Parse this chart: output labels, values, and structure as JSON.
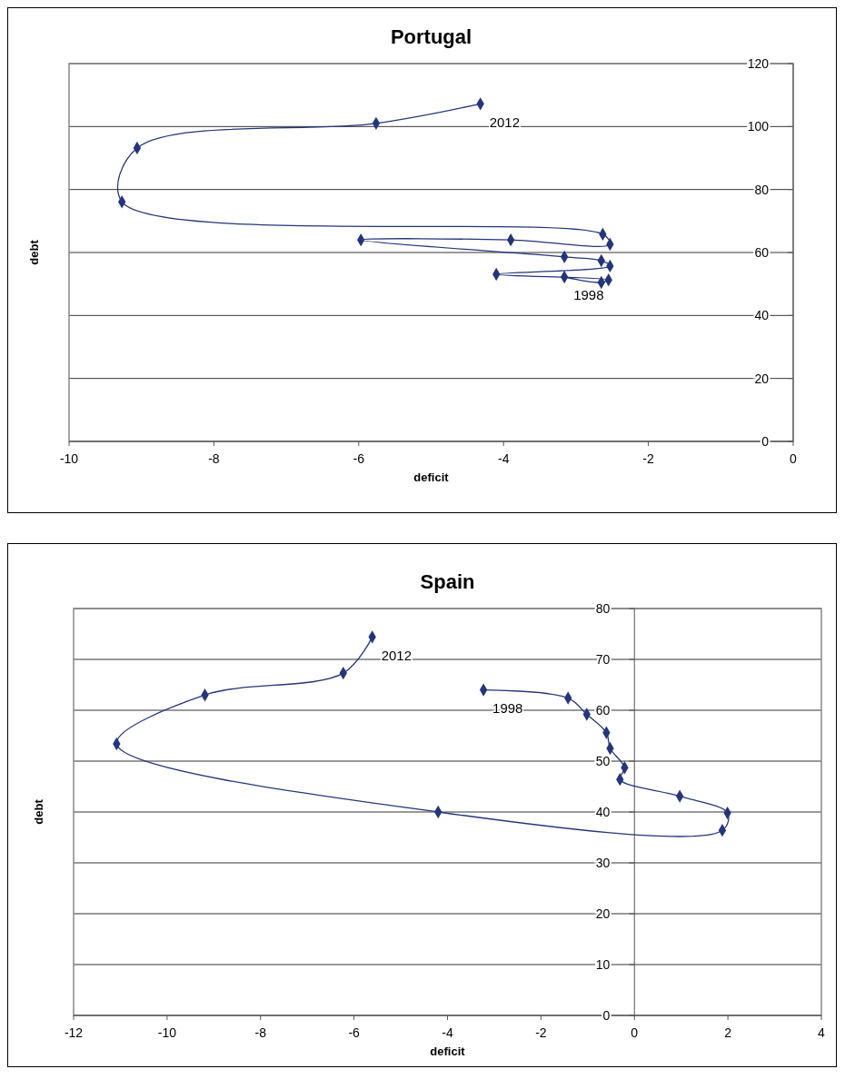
{
  "chart_data": [
    {
      "type": "line",
      "title": "Portugal",
      "xlabel": "deficit",
      "ylabel": "debt",
      "xlim": [
        -10,
        0
      ],
      "ylim": [
        0,
        120
      ],
      "xticks": [
        -10,
        -8,
        -6,
        -4,
        -2,
        0
      ],
      "yticks": [
        0,
        20,
        40,
        60,
        80,
        100,
        120
      ],
      "grid": "y",
      "marker": "diamond",
      "series": [
        {
          "color": "#24357a",
          "x": [
            -3.16,
            -2.65,
            -2.55,
            -4.1,
            -2.53,
            -2.65,
            -3.16,
            -5.97,
            -3.9,
            -2.53,
            -2.63,
            -9.27,
            -9.06,
            -5.76,
            -4.32
          ],
          "values": [
            52.2,
            50.5,
            51.3,
            53.1,
            55.7,
            57.4,
            58.6,
            64.0,
            64.0,
            62.6,
            65.8,
            76.1,
            93.2,
            101.0,
            107.2
          ]
        }
      ],
      "annotations": [
        {
          "text": "1998",
          "x": -3.16,
          "y": 52.2
        },
        {
          "text": "2012",
          "x": -4.32,
          "y": 107.2
        }
      ]
    },
    {
      "type": "line",
      "title": "Spain",
      "xlabel": "deficit",
      "ylabel": "debt",
      "xlim": [
        -12,
        4
      ],
      "ylim": [
        0,
        80
      ],
      "xticks": [
        -12,
        -10,
        -8,
        -6,
        -4,
        -2,
        0,
        2,
        4
      ],
      "yticks": [
        0,
        10,
        20,
        30,
        40,
        50,
        60,
        70,
        80
      ],
      "grid": "y",
      "marker": "diamond",
      "series": [
        {
          "color": "#24357a",
          "x": [
            -3.23,
            -1.42,
            -1.02,
            -0.6,
            -0.52,
            -0.21,
            -0.31,
            0.97,
            1.99,
            1.88,
            -4.2,
            -11.08,
            -9.19,
            -6.23,
            -5.61
          ],
          "values": [
            64.0,
            62.4,
            59.2,
            55.6,
            52.5,
            48.7,
            46.4,
            43.1,
            39.8,
            36.4,
            40.0,
            53.4,
            63.0,
            67.3,
            74.4
          ]
        }
      ],
      "annotations": [
        {
          "text": "1998",
          "x": -3.23,
          "y": 64.0
        },
        {
          "text": "2012",
          "x": -5.61,
          "y": 74.4
        }
      ]
    }
  ]
}
